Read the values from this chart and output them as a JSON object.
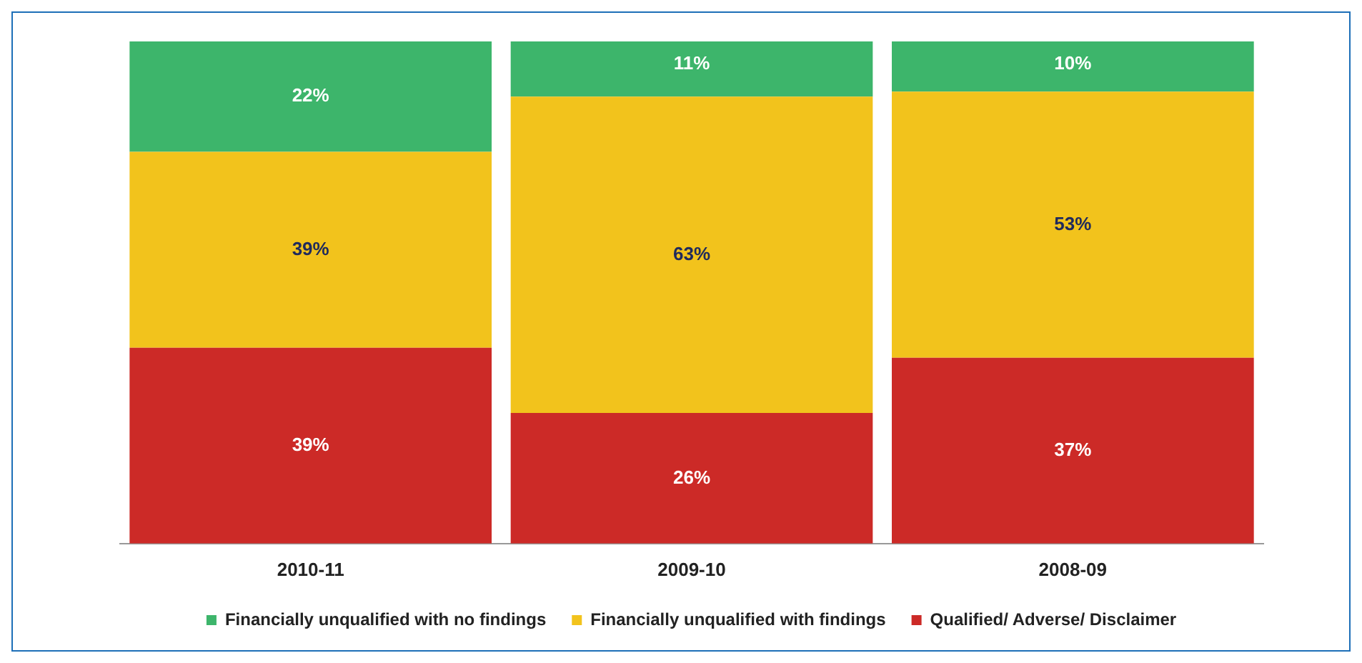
{
  "chart_data": {
    "type": "bar",
    "stacked": true,
    "grid": false,
    "legend": "bottom",
    "categories": [
      "2010-11",
      "2009-10",
      "2008-09"
    ],
    "series": [
      {
        "name": "Qualified/ Adverse/ Disclaimer",
        "color": "#cc2a27",
        "values": [
          39,
          26,
          37
        ],
        "value_labels": [
          "39%",
          "26%",
          "37%"
        ]
      },
      {
        "name": "Financially unqualified with findings",
        "color": "#f2c31c",
        "values": [
          39,
          63,
          53
        ],
        "value_labels": [
          "39%",
          "63%",
          "53%"
        ]
      },
      {
        "name": "Financially unqualified with no findings",
        "color": "#3db56b",
        "values": [
          22,
          11,
          10
        ],
        "value_labels": [
          "22%",
          "11%",
          "10%"
        ]
      }
    ]
  }
}
